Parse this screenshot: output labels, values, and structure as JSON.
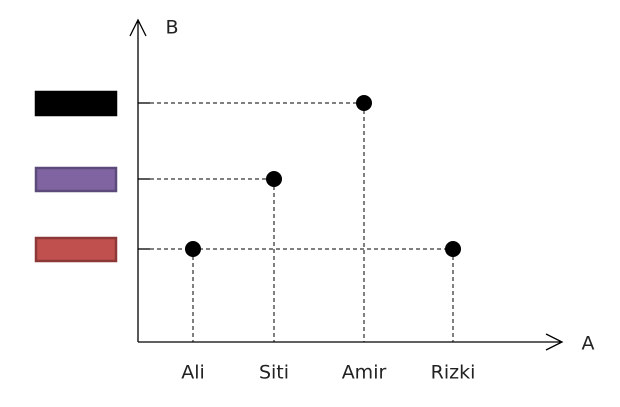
{
  "x_label": "A",
  "y_label": "B",
  "x_categories": [
    "Ali",
    "Siti",
    "Amir",
    "Rizki"
  ],
  "y_levels": [
    {
      "fill": "#c0504d",
      "stroke": "#8c3836"
    },
    {
      "fill": "#8064a2",
      "stroke": "#5c4a7a"
    },
    {
      "fill": "#000000",
      "stroke": "#000000"
    }
  ],
  "points": [
    {
      "x": 0,
      "y": 0
    },
    {
      "x": 1,
      "y": 1
    },
    {
      "x": 2,
      "y": 2
    },
    {
      "x": 3,
      "y": 0
    }
  ]
}
